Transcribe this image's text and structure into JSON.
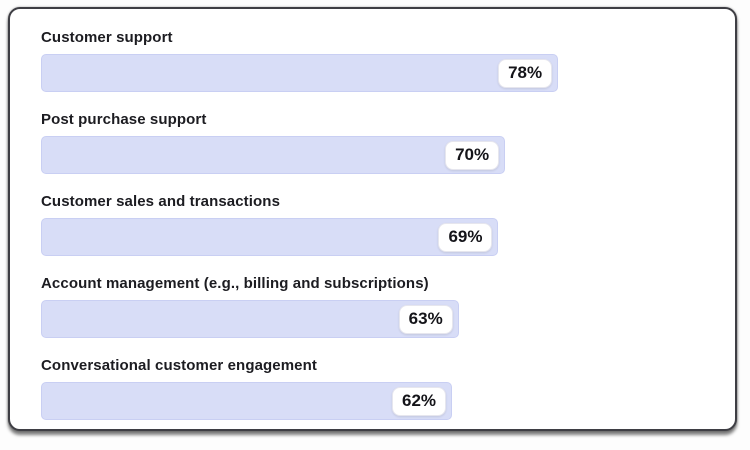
{
  "card": {
    "background": "#ffffff",
    "border_color": "#3e3e44"
  },
  "chart_data": {
    "type": "bar",
    "orientation": "horizontal",
    "title": "",
    "xlabel": "",
    "ylabel": "",
    "xlim": [
      0,
      100
    ],
    "grid": false,
    "legend": false,
    "categories": [
      "Customer support",
      "Post purchase support",
      "Customer sales and transactions",
      "Account management (e.g., billing and subscriptions)",
      "Conversational customer engagement"
    ],
    "values": [
      78,
      70,
      69,
      63,
      62
    ],
    "value_labels": [
      "78%",
      "70%",
      "69%",
      "63%",
      "62%"
    ],
    "bar_color": "#d8ddf7",
    "bar_border_color": "#c9cff3",
    "value_badge_background": "#ffffff",
    "value_badge_text_color": "#141419",
    "label_color": "#1c1c21"
  }
}
